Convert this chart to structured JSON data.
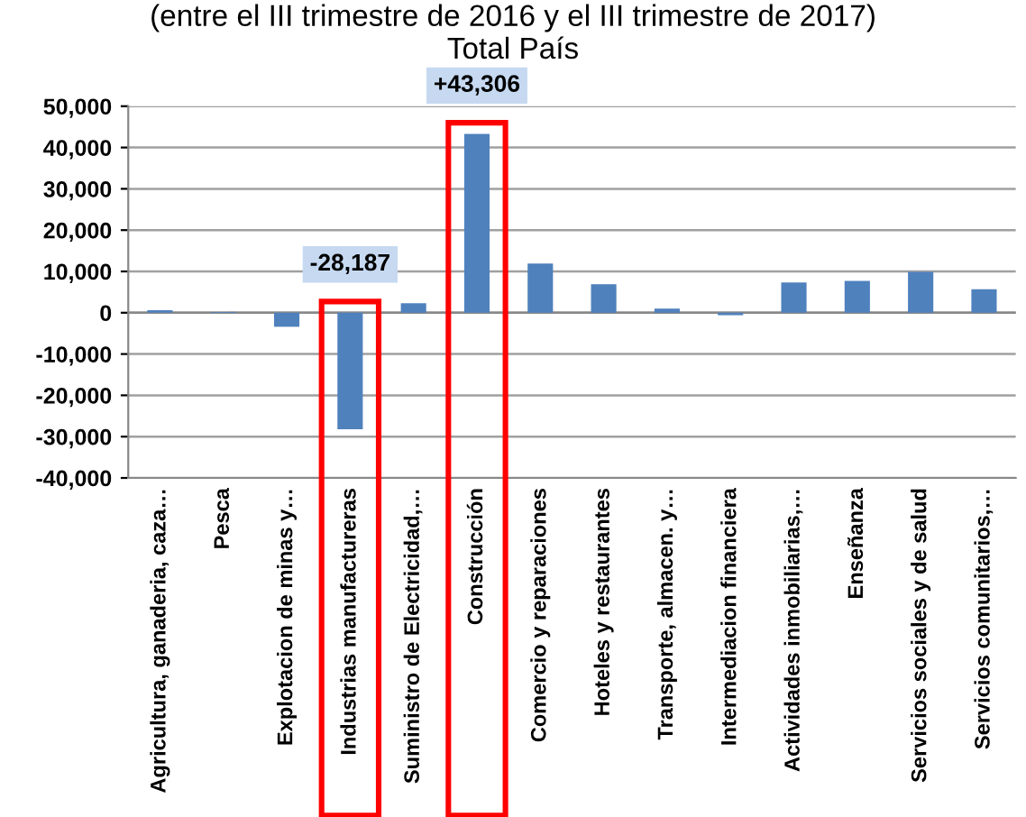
{
  "chart_data": {
    "type": "bar",
    "title": "(entre el III trimestre de 2016 y el III trimestre de 2017)",
    "subtitle": "Total País",
    "categories": [
      "Agricultura, ganaderia, caza…",
      "Pesca",
      "Explotacion de minas y…",
      "Industrias manufactureras",
      "Suministro de Electricidad,…",
      "Construcción",
      "Comercio y reparaciones",
      "Hoteles y restaurantes",
      "Transporte, almacen. y…",
      "Intermediacion financiera",
      "Actividades inmobiliarias,…",
      "Enseñanza",
      "Servicios sociales y de salud",
      "Servicios comunitarios,…"
    ],
    "values": [
      600,
      200,
      -3400,
      -28187,
      2300,
      43306,
      11900,
      6900,
      1000,
      -600,
      7300,
      7700,
      9900,
      5700
    ],
    "value_labels": [
      null,
      null,
      null,
      "-28,187",
      null,
      "+43,306",
      null,
      null,
      null,
      null,
      null,
      null,
      null,
      null
    ],
    "color": "#4f81bd",
    "ylim": [
      -40000,
      50000
    ],
    "yticks": [
      {
        "value": -40000,
        "label": "-40,000"
      },
      {
        "value": -30000,
        "label": "-30,000"
      },
      {
        "value": -20000,
        "label": "-20,000"
      },
      {
        "value": -10000,
        "label": "-10,000"
      },
      0,
      {
        "value": 10000,
        "label": "10,000"
      },
      {
        "value": 20000,
        "label": "20,000"
      },
      {
        "value": 30000,
        "label": "30,000"
      },
      {
        "value": 40000,
        "label": "40,000"
      },
      {
        "value": 50000,
        "label": "50,000"
      }
    ],
    "grid": "y"
  }
}
